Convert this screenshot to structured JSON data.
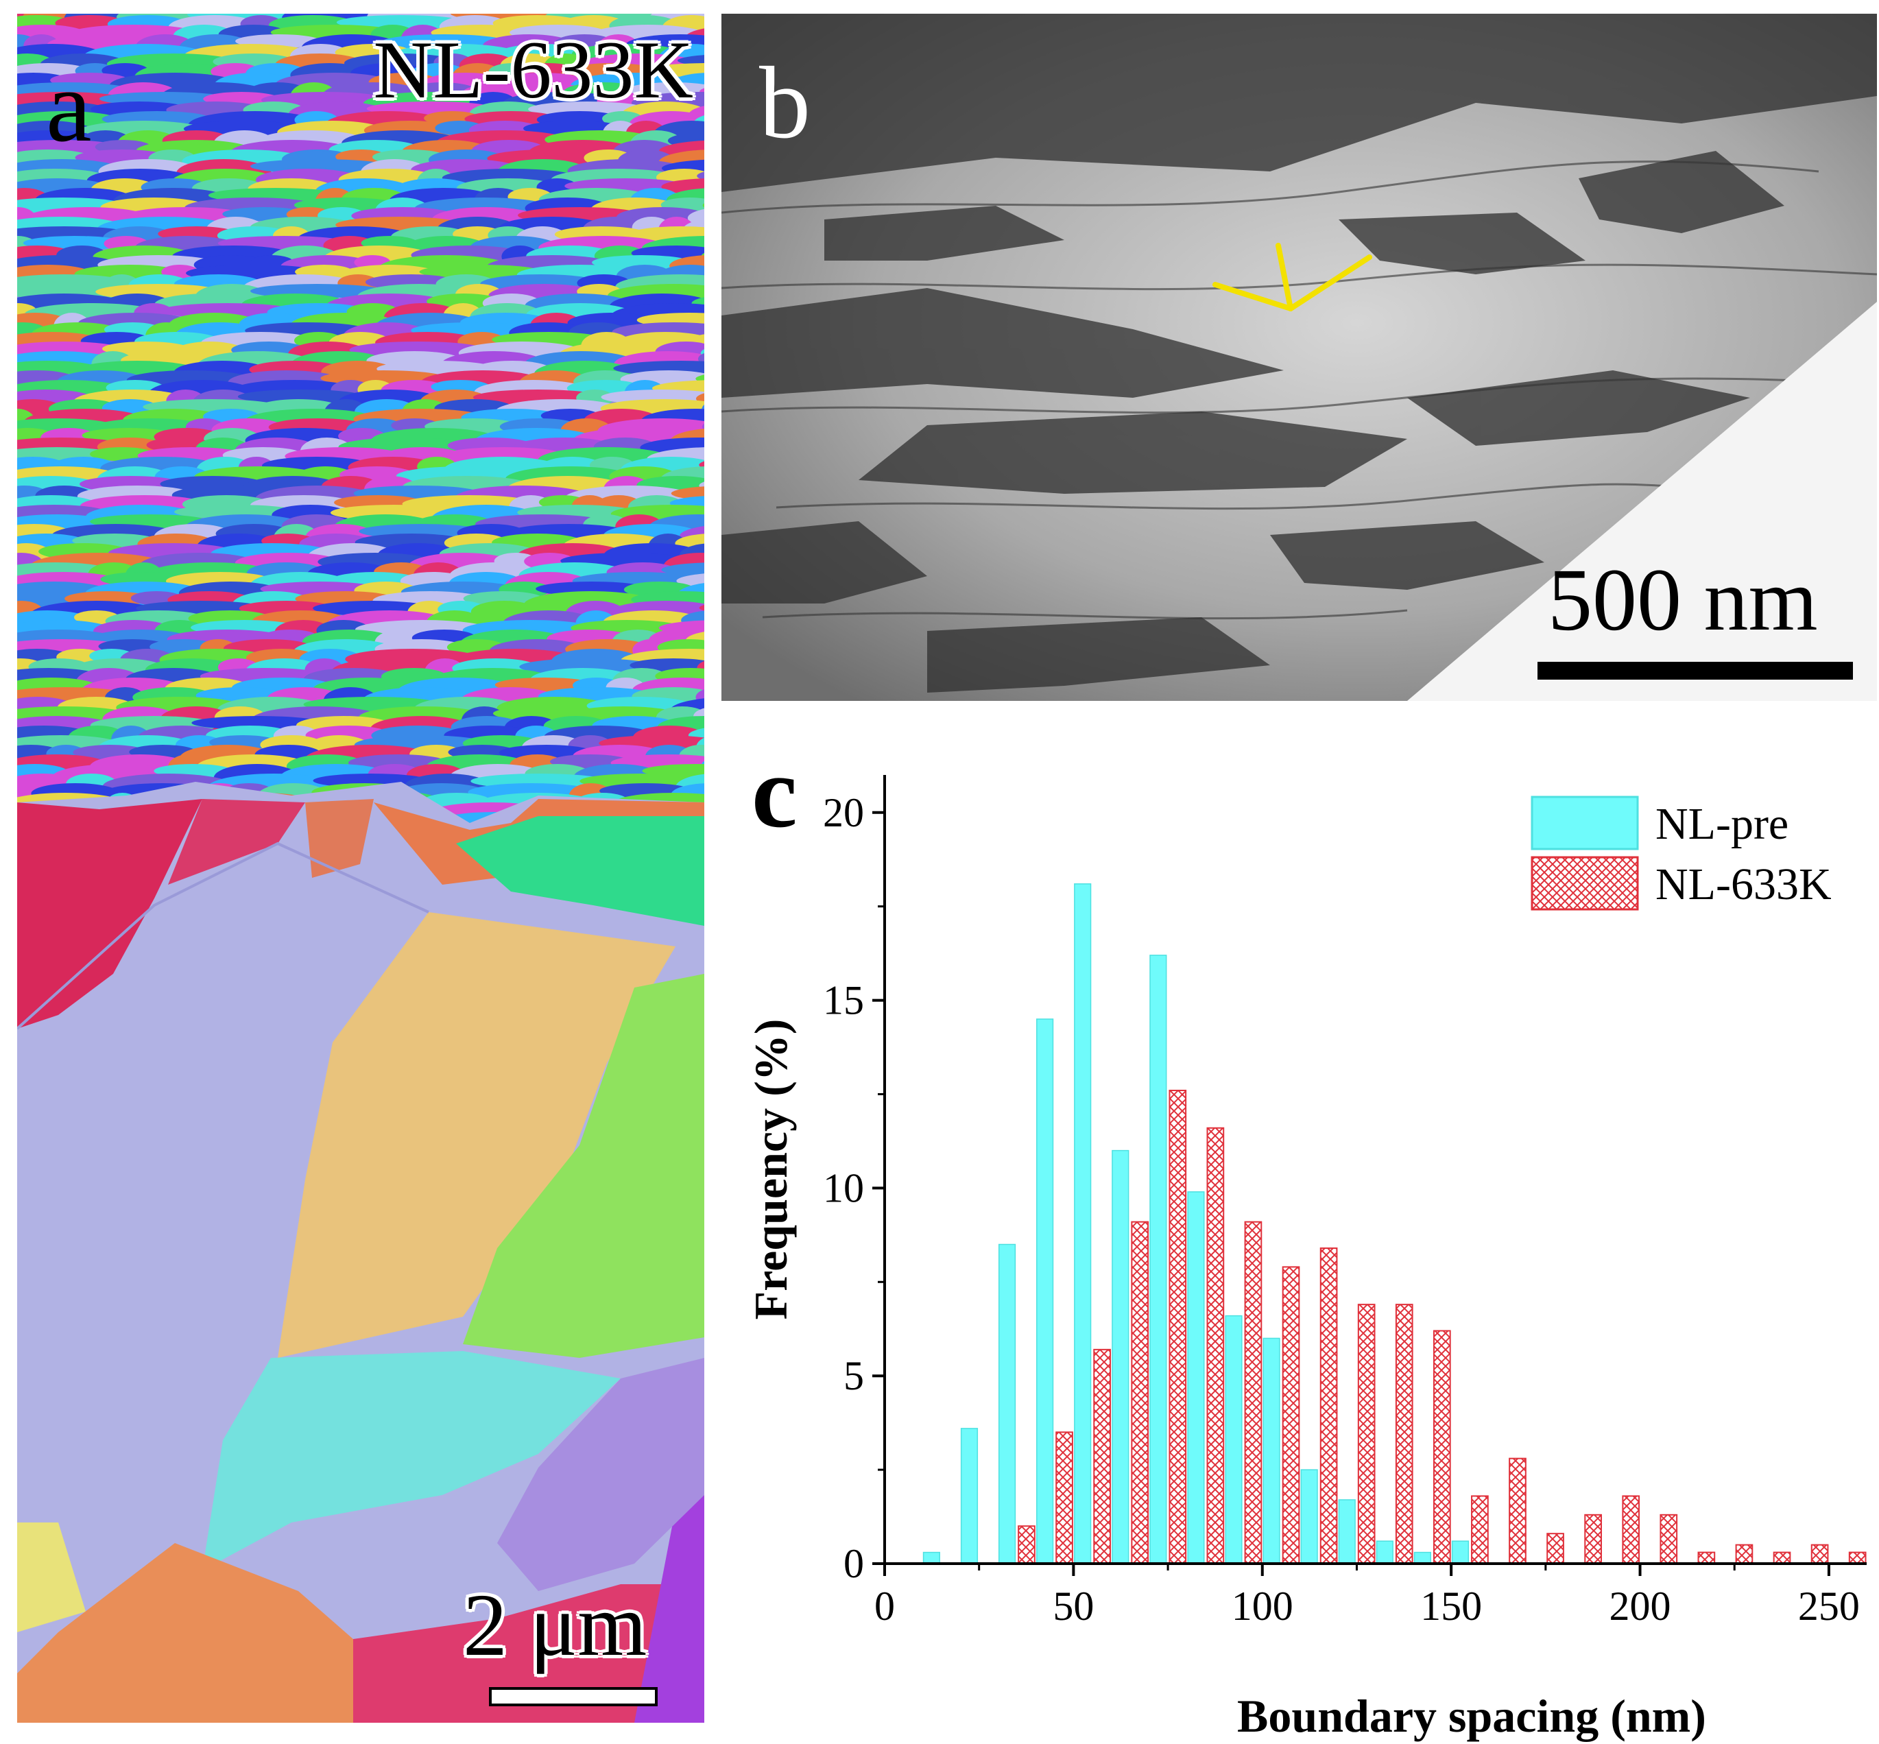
{
  "panel_a": {
    "letter": "a",
    "sample_label": "NL-633K",
    "scale_label": "2 μm"
  },
  "panel_b": {
    "letter": "b",
    "scale_label": "500 nm",
    "annotation_color": "#f3e100"
  },
  "panel_c": {
    "letter": "c"
  },
  "colors": {
    "nl_pre": "#6ffbfb",
    "nl_633k": "#e0303a",
    "axis": "#000000"
  },
  "chart_data": {
    "type": "bar",
    "xlabel": "Boundary spacing (nm)",
    "ylabel": "Frequency (%)",
    "xlim": [
      0,
      260
    ],
    "ylim": [
      0,
      21
    ],
    "xticks": [
      0,
      50,
      100,
      150,
      200,
      250
    ],
    "yticks": [
      0,
      5,
      10,
      15,
      20
    ],
    "legend_position": "top-right",
    "series": [
      {
        "name": "NL-pre",
        "fill": "solid",
        "x": [
          15,
          25,
          35,
          45,
          55,
          65,
          75,
          85,
          95,
          105,
          115,
          125,
          135,
          145,
          155
        ],
        "values": [
          0.3,
          3.6,
          8.5,
          14.5,
          18.1,
          11.0,
          16.2,
          9.9,
          6.6,
          6.0,
          2.5,
          1.7,
          0.6,
          0.3,
          0.6
        ]
      },
      {
        "name": "NL-633K",
        "fill": "crosshatch",
        "x": [
          35,
          45,
          55,
          65,
          75,
          85,
          95,
          105,
          115,
          125,
          135,
          145,
          155,
          165,
          175,
          185,
          195,
          205,
          215,
          225,
          235,
          245,
          255
        ],
        "values": [
          1.0,
          3.5,
          5.7,
          9.1,
          12.6,
          11.6,
          9.1,
          7.9,
          8.4,
          6.9,
          6.9,
          6.2,
          1.8,
          2.8,
          0.8,
          1.3,
          1.8,
          1.3,
          0.3,
          0.5,
          0.3,
          0.5,
          0.3
        ]
      }
    ]
  }
}
